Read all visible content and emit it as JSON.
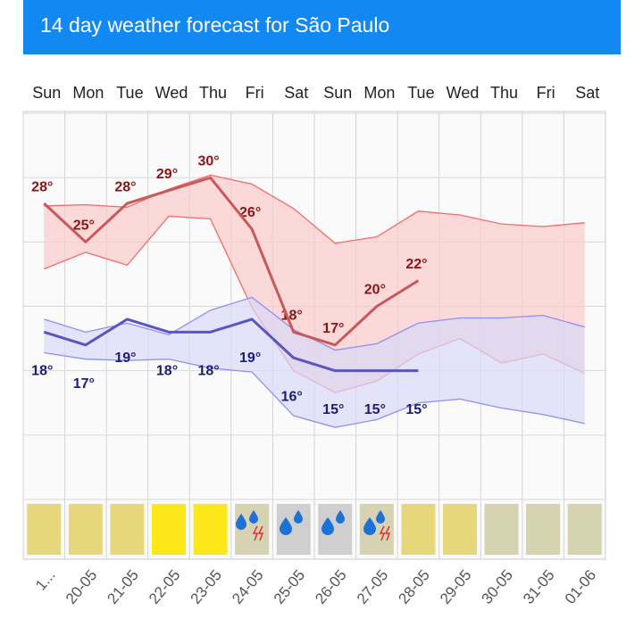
{
  "chart_data": {
    "type": "line",
    "title": "14 day weather forecast for São Paulo",
    "categories": [
      "Sun",
      "Mon",
      "Tue",
      "Wed",
      "Thu",
      "Fri",
      "Sat",
      "Sun",
      "Mon",
      "Tue",
      "Wed",
      "Thu",
      "Fri",
      "Sat"
    ],
    "dates": [
      "1...",
      "20-05",
      "21-05",
      "22-05",
      "23-05",
      "24-05",
      "25-05",
      "26-05",
      "27-05",
      "28-05",
      "29-05",
      "30-05",
      "31-05",
      "01-06"
    ],
    "ylim": [
      5,
      35
    ],
    "yticks": [
      5,
      10,
      15,
      20,
      25,
      30,
      35
    ],
    "grid": true,
    "series": [
      {
        "color": "#c8585a",
        "label_color": "#8b1414",
        "label_side": "above",
        "values": [
          28,
          25,
          28,
          29,
          30,
          26,
          18,
          17,
          20,
          22,
          null,
          null,
          null,
          null
        ],
        "value_labels": [
          "28°",
          "25°",
          "28°",
          "29°",
          "30°",
          "26°",
          "18°",
          "17°",
          "20°",
          "22°",
          null,
          null,
          null,
          null
        ]
      },
      {
        "color": "#5b55c0",
        "label_color": "#1c1c78",
        "label_side": "below",
        "values": [
          18,
          17,
          19,
          18,
          18,
          19,
          16,
          15,
          15,
          15,
          null,
          null,
          null,
          null
        ],
        "value_labels": [
          "18°",
          "17°",
          "19°",
          "18°",
          "18°",
          "19°",
          "16°",
          "15°",
          "15°",
          "15°",
          null,
          null,
          null,
          null
        ]
      }
    ],
    "bands": [
      {
        "color": "#f26b6b",
        "fill": "#fbcaca",
        "high": [
          27.8,
          27.9,
          27.7,
          29.1,
          30.2,
          29.5,
          27.6,
          24.9,
          25.4,
          27.4,
          27.1,
          26.4,
          26.2,
          26.5
        ],
        "low": [
          22.9,
          24.2,
          23.2,
          27.0,
          26.8,
          19.9,
          15.0,
          13.3,
          14.2,
          16.3,
          17.5,
          15.6,
          16.3,
          14.8
        ]
      },
      {
        "color": "#8f8ff0",
        "fill": "#d8d8f8",
        "high": [
          19.0,
          18.0,
          18.7,
          17.8,
          19.7,
          20.7,
          18.2,
          16.6,
          17.1,
          18.7,
          19.1,
          19.1,
          19.3,
          18.4
        ],
        "low": [
          16.4,
          15.9,
          15.8,
          15.9,
          15.2,
          14.9,
          11.5,
          10.6,
          11.2,
          12.5,
          12.8,
          12.1,
          11.6,
          10.9
        ]
      }
    ],
    "condition_colors": [
      "#e6d77c",
      "#e6d77c",
      "#e6d77c",
      "#fce81a",
      "#fce81a",
      "#d7d3b2",
      "#cfcfcf",
      "#cfcfcf",
      "#d7d3b2",
      "#e6d77c",
      "#e6d77c",
      "#d5d2b0",
      "#d5d2b0",
      "#d5d2b0"
    ]
  }
}
